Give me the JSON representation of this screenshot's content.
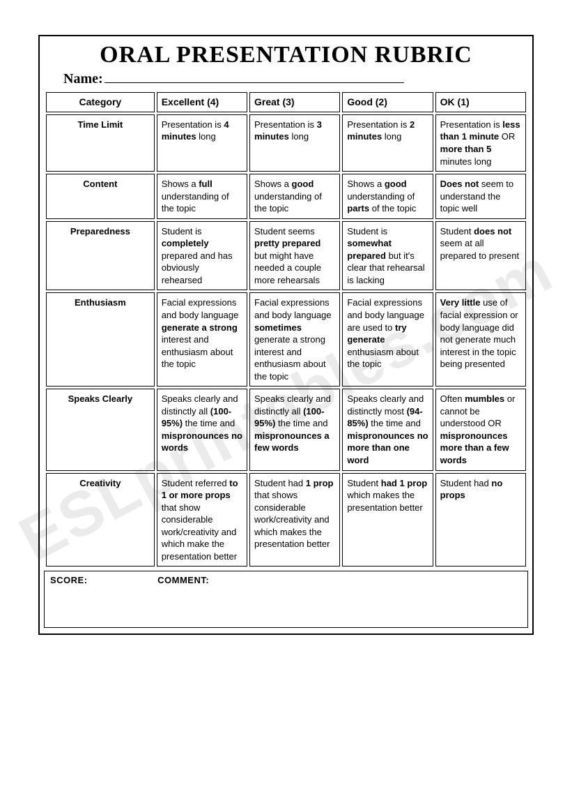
{
  "watermark": "ESLprintables.com",
  "title": "ORAL PRESENTATION RUBRIC",
  "name_label": "Name",
  "headers": {
    "category": "Category",
    "c4": "Excellent (4)",
    "c3": "Great (3)",
    "c2": "Good (2)",
    "c1": "OK (1)"
  },
  "rows": [
    {
      "cat": "Time Limit",
      "c4": "Presentation is <b>4 minutes</b> long",
      "c3": "Presentation is <b>3 minutes</b> long",
      "c2": "Presentation is <b>2 minutes</b> long",
      "c1": "Presentation is <b>less than 1 minute</b> OR <b>more than 5</b> minutes long"
    },
    {
      "cat": "Content",
      "c4": "Shows a <b>full</b> understanding of the topic",
      "c3": "Shows a <b>good</b> understanding of the topic",
      "c2": "Shows a <b>good</b> understanding of <b>parts</b> of the topic",
      "c1": "<b>Does not</b> seem to understand the topic well"
    },
    {
      "cat": "Preparedness",
      "c4": "Student is <b>completely</b> prepared and has obviously rehearsed",
      "c3": "Student seems <b>pretty prepared</b> but might have needed a couple more rehearsals",
      "c2": "Student is <b>somewhat prepared</b> but it's clear that rehearsal is lacking",
      "c1": "Student <b>does not</b> seem at all prepared to present"
    },
    {
      "cat": "Enthusiasm",
      "c4": "Facial expressions and body language <b>generate a strong</b> interest and enthusiasm about the topic",
      "c3": "Facial expressions and body language <b>sometimes</b> generate a strong interest and enthusiasm about the topic",
      "c2": "Facial expressions and body language are used to <b>try generate</b> enthusiasm about the topic",
      "c1": "<b>Very little</b> use of facial expression or body language did not generate much interest in the topic being presented"
    },
    {
      "cat": "Speaks Clearly",
      "c4": "Speaks clearly and distinctly all <b>(100-95%)</b> the time and <b>mispronounces no words</b>",
      "c3": "Speaks clearly and distinctly all <b>(100-95%)</b> the time and <b>mispronounces a few words</b>",
      "c2": "Speaks clearly and distinctly most <b>(94-85%)</b> the time and <b>mispronounces no more than one word</b>",
      "c1": "Often <b>mumbles</b> or cannot be understood OR <b>mispronounces more than a few words</b>"
    },
    {
      "cat": "Creativity",
      "c4": "Student referred <b>to 1 or more props</b> that show considerable work/creativity and which make the presentation better",
      "c3": "Student had <b>1 prop</b> that shows considerable work/creativity and which makes the presentation better",
      "c2": "Student <b>had 1 prop</b> which makes the presentation better",
      "c1": "Student had <b>no props</b>"
    }
  ],
  "footer": {
    "score": "SCORE:",
    "comment": "COMMENT:"
  }
}
